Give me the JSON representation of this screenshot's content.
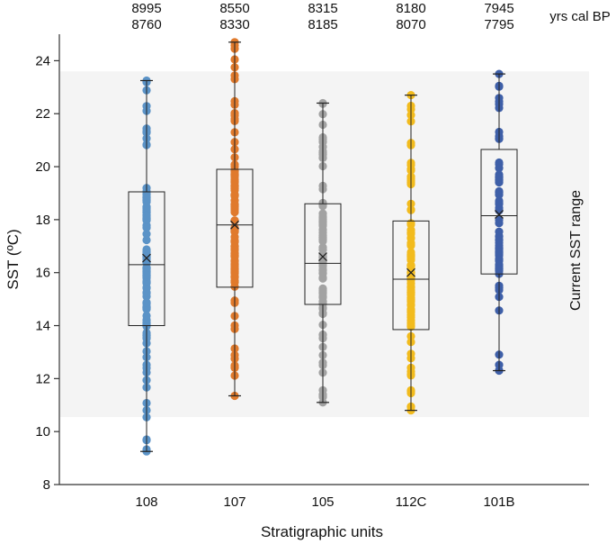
{
  "chart_data": {
    "type": "box",
    "title": "",
    "xlabel": "Stratigraphic units",
    "ylabel": "SST (ºC)",
    "ylim": [
      8,
      25
    ],
    "yticks": [
      8,
      10,
      12,
      14,
      16,
      18,
      20,
      22,
      24
    ],
    "categories": [
      "108",
      "107",
      "105",
      "112C",
      "101B"
    ],
    "age_header_label": "yrs cal BP",
    "ages": [
      {
        "older": "8995",
        "younger": "8760"
      },
      {
        "older": "8550",
        "younger": "8330"
      },
      {
        "older": "8315",
        "younger": "8185"
      },
      {
        "older": "8180",
        "younger": "8070"
      },
      {
        "older": "7945",
        "younger": "7795"
      }
    ],
    "band": {
      "label": "Current SST range",
      "low": 10.55,
      "high": 23.6,
      "color": "#f4f4f4"
    },
    "series": [
      {
        "name": "108",
        "color": "#5b93c7",
        "min": 9.25,
        "q1": 14.0,
        "median": 16.3,
        "q3": 19.05,
        "max": 23.25,
        "mean": 16.55,
        "point_range": [
          9.25,
          23.25
        ],
        "point_count": 110
      },
      {
        "name": "107",
        "color": "#e07a2c",
        "min": 11.35,
        "q1": 15.45,
        "median": 17.8,
        "q3": 19.9,
        "max": 24.7,
        "mean": 17.8,
        "point_range": [
          11.35,
          24.7
        ],
        "point_count": 95
      },
      {
        "name": "105",
        "color": "#a2a2a2",
        "min": 11.1,
        "q1": 14.8,
        "median": 16.35,
        "q3": 18.6,
        "max": 22.4,
        "mean": 16.6,
        "point_range": [
          11.1,
          22.4
        ],
        "point_count": 90
      },
      {
        "name": "112C",
        "color": "#f2bb1d",
        "min": 10.8,
        "q1": 13.85,
        "median": 15.75,
        "q3": 17.95,
        "max": 22.7,
        "mean": 16.0,
        "point_range": [
          10.8,
          22.7
        ],
        "point_count": 90
      },
      {
        "name": "101B",
        "color": "#3e5fa8",
        "min": 12.3,
        "q1": 15.95,
        "median": 18.15,
        "q3": 20.65,
        "max": 23.5,
        "mean": 18.2,
        "point_range": [
          12.3,
          23.5
        ],
        "point_count": 70
      }
    ]
  }
}
